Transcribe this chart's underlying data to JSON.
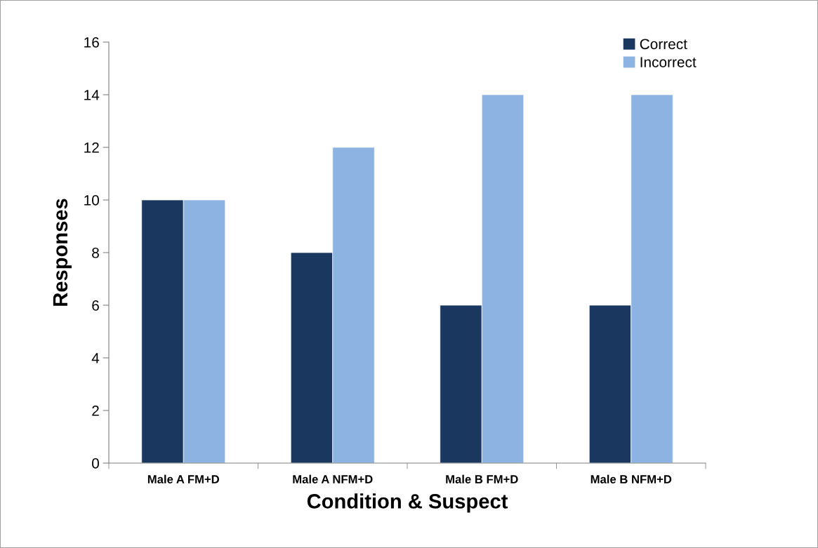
{
  "chart_data": {
    "type": "bar",
    "xlabel": "Condition & Suspect",
    "ylabel": "Responses",
    "categories": [
      "Male A FM+D",
      "Male A NFM+D",
      "Male B FM+D",
      "Male B NFM+D"
    ],
    "series": [
      {
        "name": "Correct",
        "color": "#1a3760",
        "values": [
          10,
          8,
          6,
          6
        ]
      },
      {
        "name": "Incorrect",
        "color": "#8db3e2",
        "values": [
          10,
          12,
          14,
          14
        ]
      }
    ],
    "ylim": [
      0,
      16
    ],
    "yticks": [
      0,
      2,
      4,
      6,
      8,
      10,
      12,
      14,
      16
    ],
    "grid": false,
    "legend": "top right"
  }
}
